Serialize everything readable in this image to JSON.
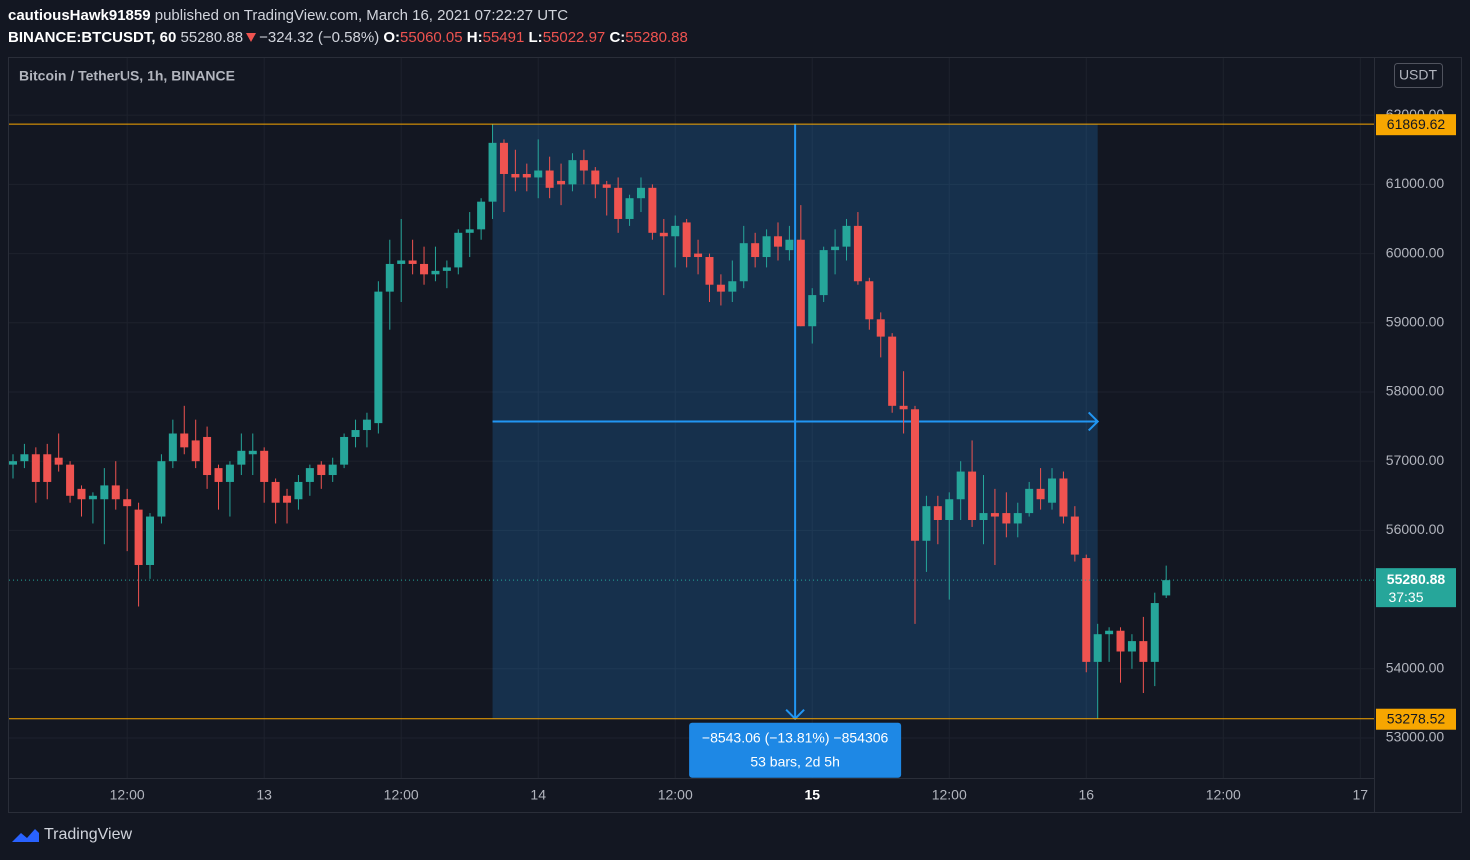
{
  "header": {
    "user": "cautiousHawk91859",
    "published": "published on TradingView.com, March 16, 2021 07:22:27 UTC",
    "symbol": "BINANCE:BTCUSDT, 60",
    "change": "−324.32 (−0.58%)",
    "ohlc_labels": [
      "O:",
      "H:",
      "L:",
      "C:"
    ]
  },
  "chart_data": {
    "type": "candlestick",
    "title": "Bitcoin / TetherUS, 1h, BINANCE",
    "currency": "USDT",
    "countdown": "37:35",
    "measure": [
      "−8543.06 (−13.81%) −854306",
      "53 bars, 2d 5h"
    ],
    "up_color": "#26a69a",
    "down_color": "#ef5350",
    "grid": true,
    "xlim": [
      -0.35,
      119.2
    ],
    "xticks": [
      {
        "value": 10,
        "label": "12:00"
      },
      {
        "value": 22,
        "label": "13"
      },
      {
        "value": 34,
        "label": "12:00"
      },
      {
        "value": 46,
        "label": "14"
      },
      {
        "value": 58,
        "label": "12:00"
      },
      {
        "value": 70,
        "label": "15"
      },
      {
        "value": 82,
        "label": "12:00"
      },
      {
        "value": 94,
        "label": "16"
      },
      {
        "value": 106,
        "label": "12:00"
      },
      {
        "value": 118,
        "label": "17"
      }
    ],
    "ylim": [
      52422,
      62826
    ],
    "yticks": [
      {
        "value": 53000,
        "label": "53000.00"
      },
      {
        "value": 54000,
        "label": "54000.00"
      },
      {
        "value": 56000,
        "label": "56000.00"
      },
      {
        "value": 57000,
        "label": "57000.00"
      },
      {
        "value": 58000,
        "label": "58000.00"
      },
      {
        "value": 59000,
        "label": "59000.00"
      },
      {
        "value": 60000,
        "label": "60000.00"
      },
      {
        "value": 61000,
        "label": "61000.00"
      },
      {
        "value": 62000,
        "label": "62000.00"
      }
    ],
    "open": [
      56950,
      57000,
      57100,
      57100,
      57050,
      56950,
      56600,
      56450,
      56450,
      56650,
      56450,
      56300,
      55500,
      56200,
      57000,
      57400,
      57300,
      57350,
      56900,
      56700,
      56950,
      57100,
      57150,
      56700,
      56500,
      56450,
      56700,
      56950,
      56800,
      56950,
      57350,
      57450,
      57550,
      59450,
      59850,
      59900,
      59850,
      59700,
      59750,
      59800,
      60300,
      60350,
      60750,
      61600,
      61150,
      61150,
      61100,
      61200,
      61050,
      61000,
      61350,
      61200,
      61000,
      60950,
      60500,
      60800,
      60950,
      60300,
      60250,
      60450,
      60000,
      59950,
      59550,
      59450,
      59600,
      60150,
      59950,
      60250,
      60050,
      60200,
      58950,
      59400,
      60050,
      60100,
      60400,
      59600,
      59050,
      58800,
      57800,
      57750,
      55850,
      56350,
      56150,
      56450,
      56850,
      56150,
      56250,
      56250,
      56100,
      56250,
      56600,
      56400,
      56750,
      56200,
      55600,
      54100,
      54500,
      54550,
      54250,
      54400,
      54100,
      55060.05
    ],
    "high": [
      57100,
      57250,
      57200,
      57250,
      57400,
      57000,
      56650,
      56550,
      56900,
      57000,
      56600,
      56400,
      56250,
      57100,
      57600,
      57800,
      57600,
      57500,
      56950,
      57000,
      57400,
      57400,
      57200,
      56750,
      56600,
      56800,
      56950,
      57000,
      57050,
      57400,
      57600,
      57700,
      59600,
      60200,
      60500,
      60200,
      60100,
      60100,
      59900,
      60350,
      60600,
      60800,
      61869.62,
      61650,
      61500,
      61300,
      61650,
      61400,
      61300,
      61450,
      61500,
      61250,
      61050,
      61100,
      60850,
      61100,
      61000,
      60500,
      60550,
      60500,
      60200,
      60000,
      59700,
      59900,
      60400,
      60300,
      60350,
      60450,
      60400,
      60700,
      59500,
      60100,
      60350,
      60500,
      60600,
      59650,
      59150,
      58850,
      58300,
      57800,
      56500,
      56500,
      56550,
      57000,
      57300,
      56800,
      56600,
      56550,
      56400,
      56700,
      56900,
      56900,
      56850,
      56350,
      55650,
      54650,
      54600,
      54600,
      54500,
      54750,
      55100,
      55491.0
    ],
    "low": [
      56750,
      56900,
      56400,
      56450,
      56850,
      56400,
      56200,
      56100,
      55800,
      56300,
      55700,
      54900,
      55300,
      56100,
      56900,
      57100,
      56900,
      56600,
      56300,
      56200,
      56800,
      56800,
      56400,
      56100,
      56100,
      56300,
      56500,
      56600,
      56700,
      56900,
      57200,
      57200,
      57400,
      58900,
      59300,
      59700,
      59550,
      59600,
      59500,
      59700,
      59950,
      60200,
      60500,
      60600,
      60900,
      60900,
      60800,
      60800,
      60700,
      60900,
      61000,
      60800,
      60550,
      60300,
      60400,
      60600,
      60200,
      59400,
      59800,
      59800,
      59700,
      59300,
      59250,
      59300,
      59500,
      59800,
      59800,
      59900,
      59900,
      58950,
      58700,
      59300,
      59700,
      59900,
      59550,
      58900,
      58500,
      57700,
      57400,
      54650,
      55400,
      55800,
      55000,
      56150,
      56050,
      55800,
      55500,
      55900,
      55900,
      56200,
      56300,
      56300,
      56100,
      55550,
      53950,
      53278.52,
      54100,
      53800,
      54000,
      53650,
      53750,
      55022.97
    ],
    "close": [
      57000,
      57100,
      56700,
      56700,
      56950,
      56500,
      56450,
      56500,
      56650,
      56450,
      56350,
      55500,
      56200,
      57000,
      57400,
      57200,
      57000,
      56800,
      56700,
      56950,
      57150,
      57150,
      56700,
      56400,
      56400,
      56700,
      56900,
      56800,
      56950,
      57350,
      57450,
      57600,
      59450,
      59850,
      59900,
      59850,
      59700,
      59750,
      59800,
      60300,
      60350,
      60750,
      61600,
      61150,
      61100,
      61100,
      61200,
      60950,
      61000,
      61350,
      61200,
      61000,
      60950,
      60500,
      60800,
      60950,
      60300,
      60250,
      60400,
      59950,
      59950,
      59550,
      59450,
      59600,
      60150,
      59950,
      60250,
      60100,
      60200,
      58950,
      59400,
      60050,
      60100,
      60400,
      59600,
      59050,
      58800,
      57800,
      57750,
      55850,
      56350,
      56150,
      56450,
      56850,
      56150,
      56250,
      56200,
      56100,
      56250,
      56600,
      56450,
      56750,
      56200,
      55650,
      54100,
      54500,
      54550,
      54250,
      54400,
      54100,
      54950,
      55280.88
    ]
  }
}
